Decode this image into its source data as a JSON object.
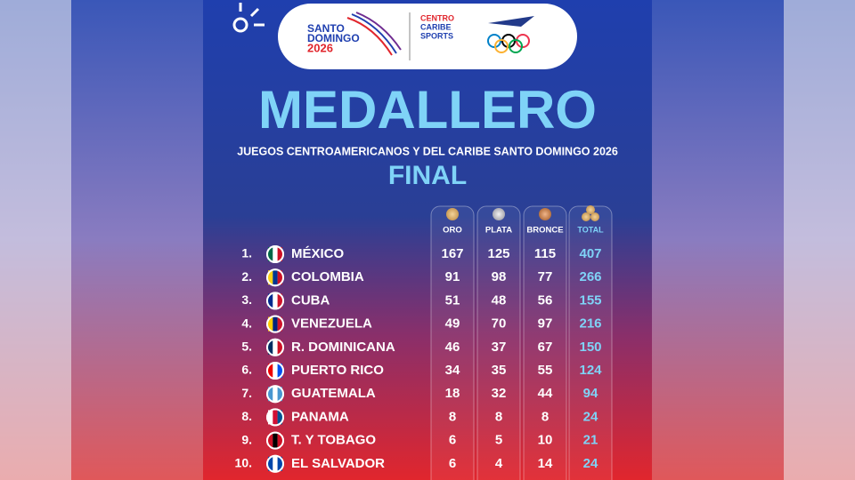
{
  "header": {
    "logo_left": [
      "SANTO",
      "DOMINGO",
      "2026"
    ],
    "logo_middle": [
      "CENTRO",
      "CARIBE",
      "SPORTS"
    ]
  },
  "title": "MEDALLERO",
  "subtitle": "JUEGOS CENTROAMERICANOS Y DEL CARIBE SANTO DOMINGO 2026",
  "stage": "FINAL",
  "table": {
    "columns": [
      "ORO",
      "PLATA",
      "BRONCE",
      "TOTAL"
    ],
    "rows": [
      [
        "1.",
        "MÉXICO",
        167,
        125,
        115,
        407
      ],
      [
        "2.",
        "COLOMBIA",
        91,
        98,
        77,
        266
      ],
      [
        "3.",
        "CUBA",
        51,
        48,
        56,
        155
      ],
      [
        "4.",
        "VENEZUELA",
        49,
        70,
        97,
        216
      ],
      [
        "5.",
        "R. DOMINICANA",
        46,
        37,
        67,
        150
      ],
      [
        "6.",
        "PUERTO RICO",
        34,
        35,
        55,
        124
      ],
      [
        "7.",
        "GUATEMALA",
        18,
        32,
        44,
        94
      ],
      [
        "8.",
        "PANAMA",
        8,
        8,
        8,
        24
      ],
      [
        "9.",
        "T. Y TOBAGO",
        6,
        5,
        10,
        21
      ],
      [
        "10.",
        "EL SALVADOR",
        6,
        4,
        14,
        24
      ]
    ]
  }
}
